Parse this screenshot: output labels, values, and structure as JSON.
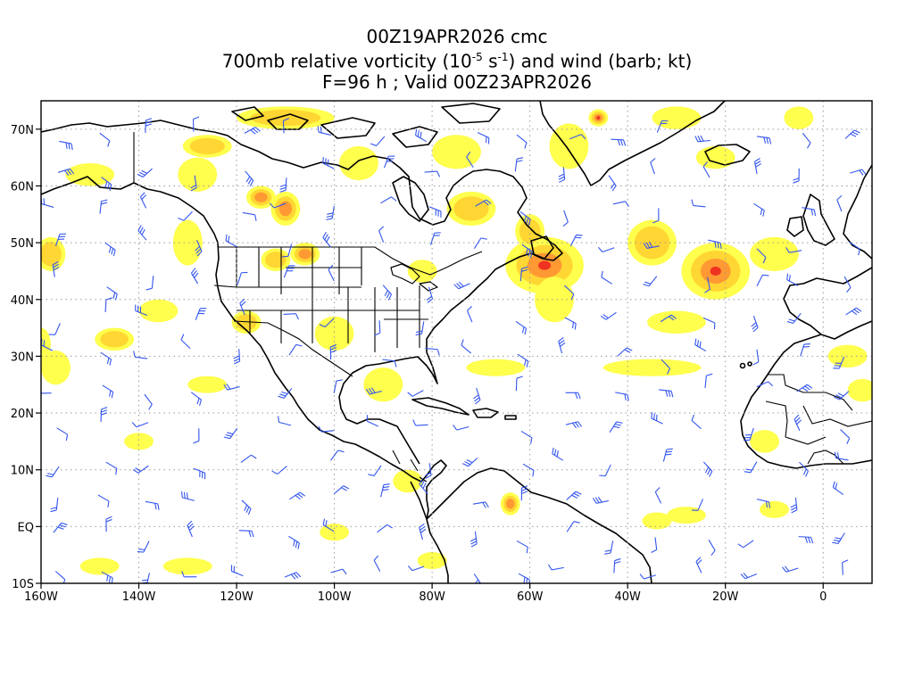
{
  "title": {
    "line1": "00Z19APR2026 cmc",
    "line2_prefix": "700mb relative vorticity (10",
    "line2_exp1": "-5",
    "line2_mid": " s",
    "line2_exp2": "-1",
    "line2_suffix": ") and wind (barb; kt)",
    "line3": "F=96 h ; Valid 00Z23APR2026"
  },
  "map": {
    "lon_range": [
      -160,
      10
    ],
    "lat_range": [
      -10,
      75
    ],
    "lat_labels": [
      {
        "lat": 70,
        "text": "70N"
      },
      {
        "lat": 60,
        "text": "60N"
      },
      {
        "lat": 50,
        "text": "50N"
      },
      {
        "lat": 40,
        "text": "40N"
      },
      {
        "lat": 30,
        "text": "30N"
      },
      {
        "lat": 20,
        "text": "20N"
      },
      {
        "lat": 10,
        "text": "10N"
      },
      {
        "lat": 0,
        "text": "EQ"
      },
      {
        "lat": -10,
        "text": "10S"
      }
    ],
    "lon_labels": [
      {
        "lon": -160,
        "text": "160W"
      },
      {
        "lon": -140,
        "text": "140W"
      },
      {
        "lon": -120,
        "text": "120W"
      },
      {
        "lon": -100,
        "text": "100W"
      },
      {
        "lon": -80,
        "text": "80W"
      },
      {
        "lon": -60,
        "text": "60W"
      },
      {
        "lon": -40,
        "text": "40W"
      },
      {
        "lon": -20,
        "text": "20W"
      },
      {
        "lon": 0,
        "text": "0"
      }
    ],
    "grid": true,
    "colors": {
      "vort_low": "#ffff4d",
      "vort_mid": "#ffd633",
      "vort_high": "#ff9933",
      "vort_max": "#ee3322",
      "barb": "#3355ee",
      "coast": "#000000",
      "grid": "#999999"
    },
    "vorticity_blobs": [
      {
        "lon": -57,
        "lat": 46,
        "rlon": 8,
        "rlat": 5,
        "level": 4
      },
      {
        "lon": -22,
        "lat": 45,
        "rlon": 7,
        "rlat": 5,
        "level": 4
      },
      {
        "lon": -35,
        "lat": 50,
        "rlon": 5,
        "rlat": 4,
        "level": 2
      },
      {
        "lon": -115,
        "lat": 58,
        "rlon": 3,
        "rlat": 2,
        "level": 3
      },
      {
        "lon": -110,
        "lat": 56,
        "rlon": 3,
        "rlat": 3,
        "level": 3
      },
      {
        "lon": -106,
        "lat": 48,
        "rlon": 3,
        "rlat": 2,
        "level": 3
      },
      {
        "lon": -112,
        "lat": 47,
        "rlon": 3,
        "rlat": 2,
        "level": 2
      },
      {
        "lon": -110,
        "lat": 72,
        "rlon": 10,
        "rlat": 2,
        "level": 2
      },
      {
        "lon": -126,
        "lat": 67,
        "rlon": 5,
        "rlat": 2,
        "level": 2
      },
      {
        "lon": -46,
        "lat": 72,
        "rlon": 2,
        "rlat": 1.5,
        "level": 4
      },
      {
        "lon": -72,
        "lat": 56,
        "rlon": 5,
        "rlat": 3,
        "level": 2
      },
      {
        "lon": -118,
        "lat": 36,
        "rlon": 3,
        "rlat": 2,
        "level": 2
      },
      {
        "lon": -145,
        "lat": 33,
        "rlon": 4,
        "rlat": 2,
        "level": 2
      },
      {
        "lon": -158,
        "lat": 48,
        "rlon": 3,
        "rlat": 3,
        "level": 2
      },
      {
        "lon": -67,
        "lat": 28,
        "rlon": 6,
        "rlat": 1.5,
        "level": 1
      },
      {
        "lon": -35,
        "lat": 28,
        "rlon": 10,
        "rlat": 1.5,
        "level": 1
      },
      {
        "lon": -64,
        "lat": 4,
        "rlon": 2,
        "rlat": 2,
        "level": 3
      },
      {
        "lon": -10,
        "lat": 48,
        "rlon": 5,
        "rlat": 3,
        "level": 1
      },
      {
        "lon": -30,
        "lat": 36,
        "rlon": 6,
        "rlat": 2,
        "level": 1
      },
      {
        "lon": -150,
        "lat": 62,
        "rlon": 5,
        "rlat": 2,
        "level": 1
      },
      {
        "lon": -95,
        "lat": 64,
        "rlon": 4,
        "rlat": 3,
        "level": 1
      },
      {
        "lon": -130,
        "lat": 50,
        "rlon": 3,
        "rlat": 4,
        "level": 1
      },
      {
        "lon": -128,
        "lat": 62,
        "rlon": 4,
        "rlat": 3,
        "level": 1
      },
      {
        "lon": -157,
        "lat": 28,
        "rlon": 3,
        "rlat": 3,
        "level": 1
      },
      {
        "lon": -136,
        "lat": 38,
        "rlon": 4,
        "rlat": 2,
        "level": 1
      },
      {
        "lon": -140,
        "lat": 15,
        "rlon": 3,
        "rlat": 1.5,
        "level": 1
      },
      {
        "lon": -126,
        "lat": 25,
        "rlon": 4,
        "rlat": 1.5,
        "level": 1
      },
      {
        "lon": -90,
        "lat": 25,
        "rlon": 4,
        "rlat": 3,
        "level": 1
      },
      {
        "lon": -100,
        "lat": 34,
        "rlon": 4,
        "rlat": 3,
        "level": 1
      },
      {
        "lon": -82,
        "lat": 45,
        "rlon": 3,
        "rlat": 2,
        "level": 1
      },
      {
        "lon": -75,
        "lat": 66,
        "rlon": 5,
        "rlat": 3,
        "level": 1
      },
      {
        "lon": -52,
        "lat": 67,
        "rlon": 4,
        "rlat": 4,
        "level": 1
      },
      {
        "lon": -30,
        "lat": 72,
        "rlon": 5,
        "rlat": 2,
        "level": 1
      },
      {
        "lon": -22,
        "lat": 65,
        "rlon": 4,
        "rlat": 2,
        "level": 1
      },
      {
        "lon": -5,
        "lat": 72,
        "rlon": 3,
        "rlat": 2,
        "level": 1
      },
      {
        "lon": 5,
        "lat": 30,
        "rlon": 4,
        "rlat": 2,
        "level": 1
      },
      {
        "lon": 8,
        "lat": 24,
        "rlon": 3,
        "rlat": 2,
        "level": 1
      },
      {
        "lon": -28,
        "lat": 2,
        "rlon": 4,
        "rlat": 1.5,
        "level": 1
      },
      {
        "lon": -10,
        "lat": 3,
        "rlon": 3,
        "rlat": 1.5,
        "level": 1
      },
      {
        "lon": -130,
        "lat": -7,
        "rlon": 5,
        "rlat": 1.5,
        "level": 1
      },
      {
        "lon": -148,
        "lat": -7,
        "rlon": 4,
        "rlat": 1.5,
        "level": 1
      },
      {
        "lon": -85,
        "lat": 8,
        "rlon": 3,
        "rlat": 2,
        "level": 1
      },
      {
        "lon": -100,
        "lat": -1,
        "rlon": 3,
        "rlat": 1.5,
        "level": 1
      },
      {
        "lon": -80,
        "lat": -6,
        "rlon": 3,
        "rlat": 1.5,
        "level": 1
      },
      {
        "lon": -55,
        "lat": 40,
        "rlon": 4,
        "rlat": 4,
        "level": 1
      },
      {
        "lon": -160,
        "lat": 32,
        "rlon": 2,
        "rlat": 3,
        "level": 1
      },
      {
        "lon": -12,
        "lat": 15,
        "rlon": 3,
        "rlat": 2,
        "level": 1
      },
      {
        "lon": -34,
        "lat": 1,
        "rlon": 3,
        "rlat": 1.5,
        "level": 1
      },
      {
        "lon": -60,
        "lat": 52,
        "rlon": 3,
        "rlat": 3,
        "level": 2
      }
    ]
  }
}
